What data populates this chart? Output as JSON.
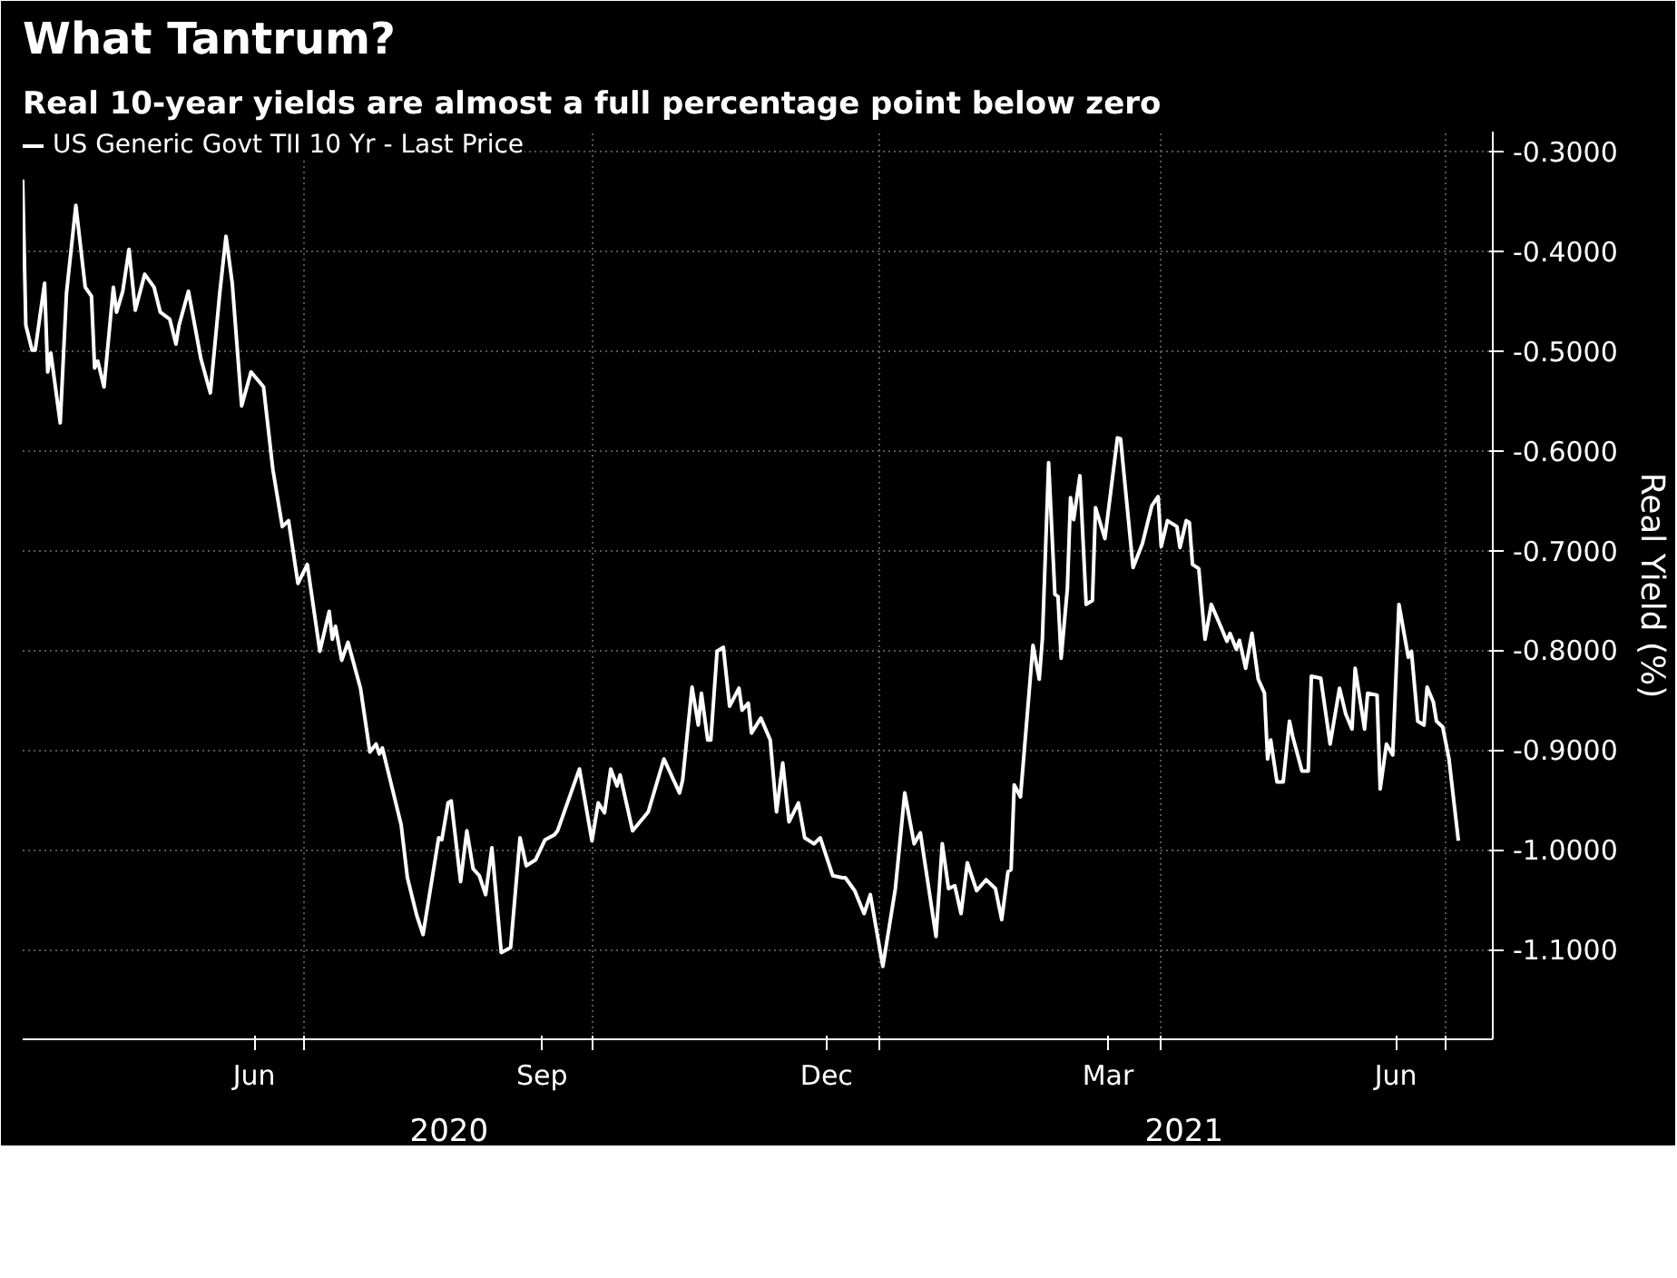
{
  "chart_data": {
    "type": "line",
    "title": "What Tantrum?",
    "subtitle": "Real 10-year yields are almost a full percentage point below zero",
    "ylabel": "Real Yield (%)",
    "x": [
      "2020-04-02",
      "2020-04-03",
      "2020-04-05",
      "2020-04-06",
      "2020-04-09",
      "2020-04-10",
      "2020-04-11",
      "2020-04-14",
      "2020-04-16",
      "2020-04-19",
      "2020-04-22",
      "2020-04-24",
      "2020-04-25",
      "2020-04-26",
      "2020-04-28",
      "2020-05-01",
      "2020-05-02",
      "2020-05-04",
      "2020-05-06",
      "2020-05-08",
      "2020-05-11",
      "2020-05-14",
      "2020-05-16",
      "2020-05-19",
      "2020-05-21",
      "2020-05-22",
      "2020-05-25",
      "2020-05-29",
      "2020-06-01",
      "2020-06-04",
      "2020-06-06",
      "2020-06-08",
      "2020-06-11",
      "2020-06-14",
      "2020-06-18",
      "2020-06-21",
      "2020-06-24",
      "2020-06-26",
      "2020-06-29",
      "2020-07-02",
      "2020-07-06",
      "2020-07-09",
      "2020-07-10",
      "2020-07-11",
      "2020-07-13",
      "2020-07-15",
      "2020-07-19",
      "2020-07-22",
      "2020-07-24",
      "2020-07-25",
      "2020-07-26",
      "2020-08-01",
      "2020-08-03",
      "2020-08-06",
      "2020-08-08",
      "2020-08-13",
      "2020-08-14",
      "2020-08-16",
      "2020-08-17",
      "2020-08-20",
      "2020-08-22",
      "2020-08-24",
      "2020-08-26",
      "2020-08-28",
      "2020-08-30",
      "2020-09-02",
      "2020-09-05",
      "2020-09-08",
      "2020-09-10",
      "2020-09-13",
      "2020-09-16",
      "2020-09-19",
      "2020-09-20",
      "2020-09-27",
      "2020-10-01",
      "2020-10-03",
      "2020-10-05",
      "2020-10-07",
      "2020-10-09",
      "2020-10-10",
      "2020-10-14",
      "2020-10-19",
      "2020-10-24",
      "2020-10-29",
      "2020-10-30",
      "2020-11-02",
      "2020-11-04",
      "2020-11-05",
      "2020-11-07",
      "2020-11-08",
      "2020-11-10",
      "2020-11-12",
      "2020-11-14",
      "2020-11-17",
      "2020-11-18",
      "2020-11-20",
      "2020-11-21",
      "2020-11-24",
      "2020-11-27",
      "2020-11-29",
      "2020-12-01",
      "2020-12-03",
      "2020-12-06",
      "2020-12-08",
      "2020-12-11",
      "2020-12-13",
      "2020-12-17",
      "2020-12-20",
      "2020-12-21",
      "2020-12-24",
      "2020-12-27",
      "2020-12-29",
      "2021-01-02",
      "2021-01-06",
      "2021-01-09",
      "2021-01-12",
      "2021-01-14",
      "2021-01-19",
      "2021-01-21",
      "2021-01-23",
      "2021-01-25",
      "2021-01-27",
      "2021-01-29",
      "2021-02-01",
      "2021-02-04",
      "2021-02-07",
      "2021-02-09",
      "2021-02-11",
      "2021-02-12",
      "2021-02-13",
      "2021-02-15",
      "2021-02-19",
      "2021-02-21",
      "2021-02-22",
      "2021-02-24",
      "2021-02-26",
      "2021-02-27",
      "2021-02-28",
      "2021-03-02",
      "2021-03-03",
      "2021-03-04",
      "2021-03-06",
      "2021-03-08",
      "2021-03-10",
      "2021-03-11",
      "2021-03-14",
      "2021-03-18",
      "2021-03-19",
      "2021-03-23",
      "2021-03-26",
      "2021-03-29",
      "2021-03-31",
      "2021-04-01",
      "2021-04-03",
      "2021-04-06",
      "2021-04-07",
      "2021-04-09",
      "2021-04-10",
      "2021-04-11",
      "2021-04-13",
      "2021-04-15",
      "2021-04-17",
      "2021-04-20",
      "2021-04-22",
      "2021-04-23",
      "2021-04-25",
      "2021-04-26",
      "2021-04-28",
      "2021-04-30",
      "2021-05-02",
      "2021-05-04",
      "2021-05-05",
      "2021-05-06",
      "2021-05-08",
      "2021-05-10",
      "2021-05-12",
      "2021-05-13",
      "2021-05-16",
      "2021-05-18",
      "2021-05-19",
      "2021-05-22",
      "2021-05-25",
      "2021-05-28",
      "2021-05-30",
      "2021-06-01",
      "2021-06-02",
      "2021-06-05",
      "2021-06-06",
      "2021-06-09",
      "2021-06-10",
      "2021-06-12",
      "2021-06-14",
      "2021-06-16",
      "2021-06-19",
      "2021-06-20",
      "2021-06-22",
      "2021-06-24",
      "2021-06-25",
      "2021-06-27",
      "2021-06-28",
      "2021-06-30",
      "2021-07-02",
      "2021-07-05"
    ],
    "series": [
      {
        "name": "US Generic Govt TII 10 Yr - Last Price",
        "color": "#ffffff",
        "values": [
          -0.328,
          -0.474,
          -0.499,
          -0.499,
          -0.432,
          -0.521,
          -0.502,
          -0.572,
          -0.442,
          -0.354,
          -0.436,
          -0.445,
          -0.517,
          -0.51,
          -0.536,
          -0.436,
          -0.461,
          -0.44,
          -0.398,
          -0.459,
          -0.423,
          -0.436,
          -0.461,
          -0.468,
          -0.493,
          -0.474,
          -0.44,
          -0.508,
          -0.542,
          -0.442,
          -0.385,
          -0.432,
          -0.555,
          -0.521,
          -0.536,
          -0.619,
          -0.676,
          -0.67,
          -0.733,
          -0.714,
          -0.801,
          -0.761,
          -0.789,
          -0.776,
          -0.81,
          -0.792,
          -0.838,
          -0.902,
          -0.894,
          -0.904,
          -0.898,
          -0.975,
          -1.028,
          -1.066,
          -1.085,
          -0.988,
          -0.99,
          -0.953,
          -0.951,
          -1.032,
          -0.981,
          -1.019,
          -1.026,
          -1.045,
          -0.998,
          -1.103,
          -1.098,
          -0.988,
          -1.016,
          -1.01,
          -0.99,
          -0.985,
          -0.981,
          -0.919,
          -0.991,
          -0.953,
          -0.963,
          -0.919,
          -0.936,
          -0.925,
          -0.981,
          -0.962,
          -0.909,
          -0.943,
          -0.93,
          -0.837,
          -0.875,
          -0.843,
          -0.89,
          -0.89,
          -0.801,
          -0.797,
          -0.856,
          -0.838,
          -0.86,
          -0.853,
          -0.883,
          -0.868,
          -0.89,
          -0.962,
          -0.913,
          -0.972,
          -0.953,
          -0.988,
          -0.994,
          -0.988,
          -1.026,
          -1.028,
          -1.028,
          -1.041,
          -1.064,
          -1.045,
          -1.117,
          -1.039,
          -0.943,
          -0.994,
          -0.983,
          -1.087,
          -0.994,
          -1.039,
          -1.036,
          -1.064,
          -1.013,
          -1.041,
          -1.03,
          -1.039,
          -1.07,
          -1.022,
          -1.02,
          -0.935,
          -0.947,
          -0.795,
          -0.829,
          -0.789,
          -0.612,
          -0.744,
          -0.746,
          -0.808,
          -0.738,
          -0.647,
          -0.669,
          -0.625,
          -0.754,
          -0.75,
          -0.657,
          -0.688,
          -0.587,
          -0.588,
          -0.717,
          -0.693,
          -0.655,
          -0.646,
          -0.696,
          -0.67,
          -0.676,
          -0.697,
          -0.67,
          -0.672,
          -0.714,
          -0.718,
          -0.789,
          -0.754,
          -0.776,
          -0.791,
          -0.783,
          -0.799,
          -0.79,
          -0.818,
          -0.783,
          -0.829,
          -0.843,
          -0.909,
          -0.89,
          -0.932,
          -0.932,
          -0.871,
          -0.886,
          -0.921,
          -0.921,
          -0.826,
          -0.828,
          -0.894,
          -0.838,
          -0.864,
          -0.879,
          -0.818,
          -0.879,
          -0.843,
          -0.845,
          -0.939,
          -0.894,
          -0.905,
          -0.754,
          -0.807,
          -0.801,
          -0.871,
          -0.875,
          -0.837,
          -0.852,
          -0.871,
          -0.877,
          -0.909,
          -0.991
        ]
      }
    ],
    "xlim": [
      "2020-04-02",
      "2021-07-16"
    ],
    "xticks": [
      {
        "value": "2020-06-15",
        "label": "Jun"
      },
      {
        "value": "2020-07-01",
        "label": null
      },
      {
        "value": "2020-09-15",
        "label": "Sep"
      },
      {
        "value": "2020-10-01",
        "label": null
      },
      {
        "value": "2020-12-15",
        "label": "Dec"
      },
      {
        "value": "2021-01-01",
        "label": null
      },
      {
        "value": "2021-03-15",
        "label": "Mar"
      },
      {
        "value": "2021-04-01",
        "label": null
      },
      {
        "value": "2021-06-15",
        "label": "Jun"
      },
      {
        "value": "2021-07-01",
        "label": null
      }
    ],
    "ylim": [
      -1.19,
      -0.28
    ],
    "yticks": [
      {
        "value": -0.3,
        "label": "-0.3000"
      },
      {
        "value": -0.4,
        "label": "-0.4000"
      },
      {
        "value": -0.5,
        "label": "-0.5000"
      },
      {
        "value": -0.6,
        "label": "-0.6000"
      },
      {
        "value": -0.7,
        "label": "-0.7000"
      },
      {
        "value": -0.8,
        "label": "-0.8000"
      },
      {
        "value": -0.9,
        "label": "-0.9000"
      },
      {
        "value": -1.0,
        "label": "-1.0000"
      },
      {
        "value": -1.1,
        "label": "-1.1000"
      }
    ],
    "annotations": [
      "2020",
      "2021"
    ],
    "grid": true,
    "legend": "top left",
    "marker": "none",
    "line_style": "solid"
  }
}
